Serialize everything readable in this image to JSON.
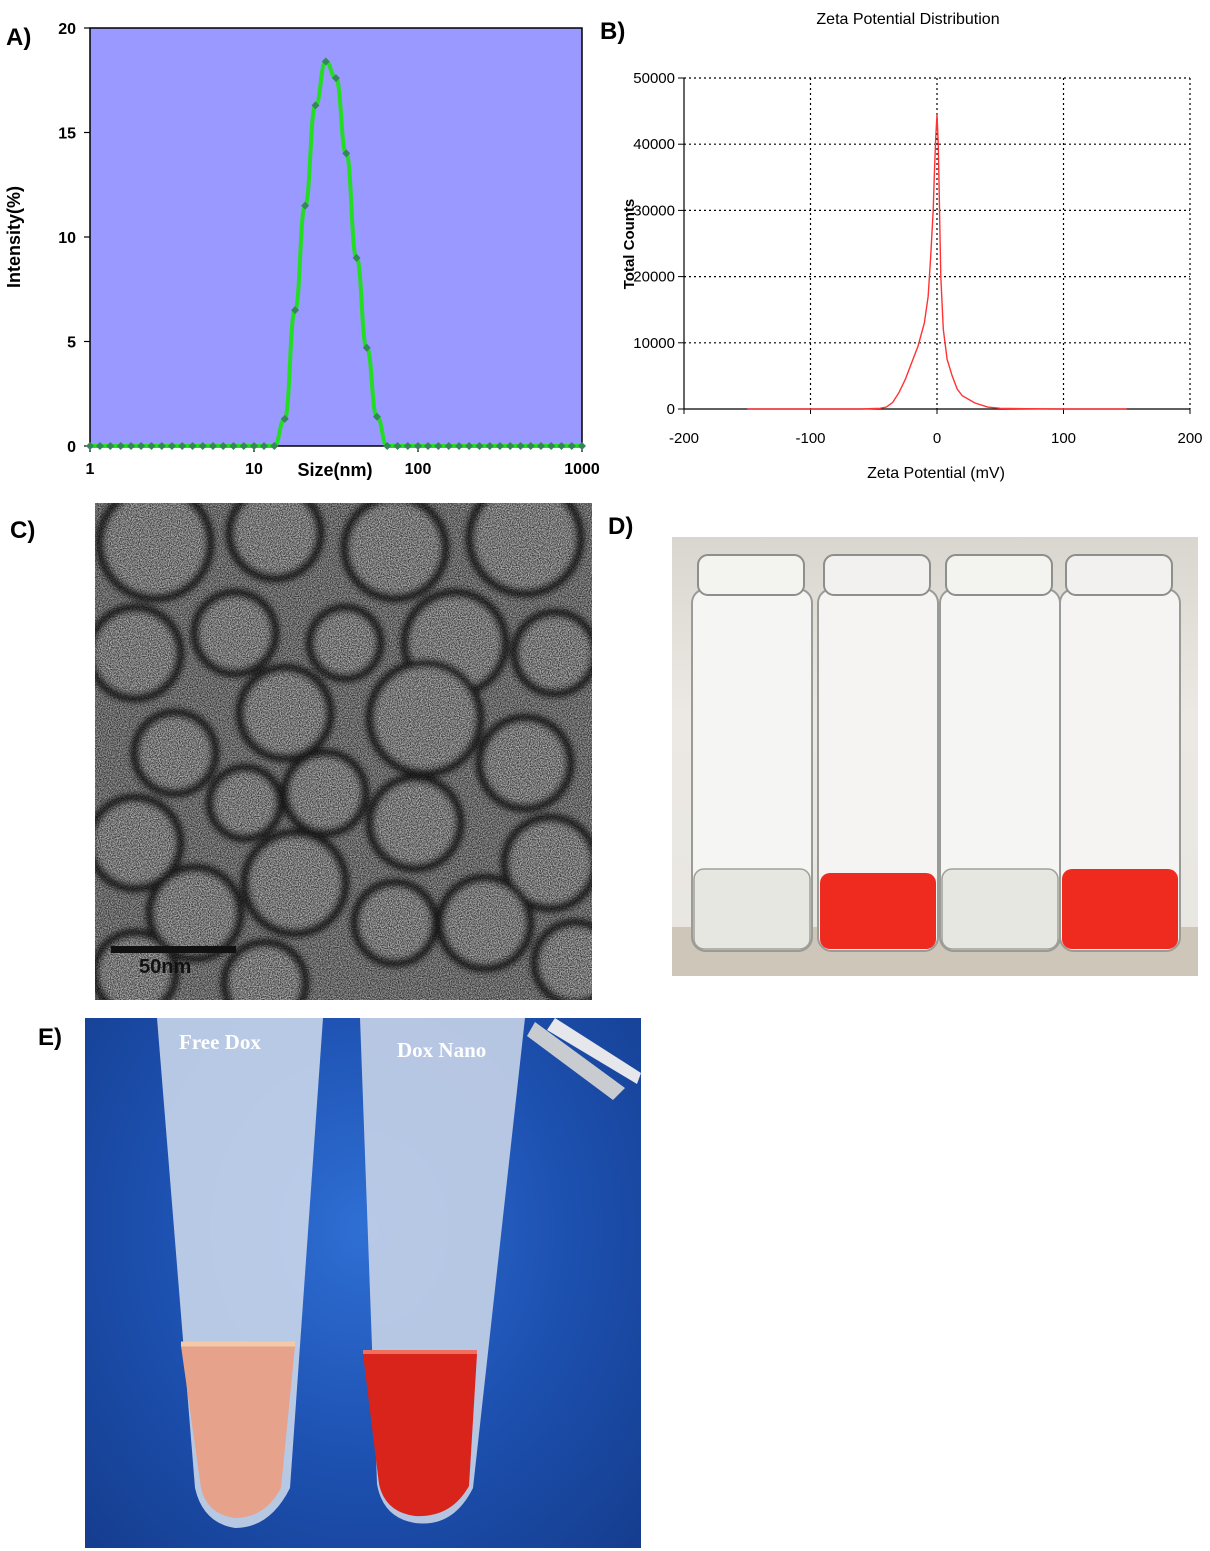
{
  "panels": {
    "a": "A)",
    "b": "B)",
    "c": "C)",
    "d": "D)",
    "e": "E)"
  },
  "chart_data": [
    {
      "type": "line",
      "panel": "A",
      "title": "",
      "xlabel": "Size(nm)",
      "ylabel": "Intensity(%)",
      "xscale": "log",
      "xlim": [
        1,
        1000
      ],
      "ylim": [
        0,
        20
      ],
      "xticks": [
        "1",
        "10",
        "100",
        "1000"
      ],
      "yticks": [
        "0",
        "5",
        "10",
        "15",
        "20"
      ],
      "background_color": "#9999ff",
      "line_color": "#22dd22",
      "marker_color": "#338855",
      "series": [
        {
          "x": [
            1,
            1.15,
            1.33,
            1.54,
            1.78,
            2.05,
            2.37,
            2.74,
            3.16,
            3.65,
            4.22,
            4.87,
            5.62,
            6.49,
            7.5,
            8.66,
            10,
            11.5,
            13.3,
            15.4,
            17.8,
            20.5,
            23.7,
            27.4,
            31.6,
            36.5,
            42.2,
            48.7,
            56.2,
            64.9,
            75,
            86.6,
            100,
            115,
            133,
            154,
            178,
            205,
            237,
            274,
            316,
            365,
            422,
            487,
            562,
            649,
            750,
            866,
            1000
          ],
          "values": [
            0,
            0,
            0,
            0,
            0,
            0,
            0,
            0,
            0,
            0,
            0,
            0,
            0,
            0,
            0,
            0,
            0,
            0,
            0,
            1.3,
            6.5,
            11.5,
            16.3,
            18.4,
            17.6,
            14.0,
            9.0,
            4.7,
            1.4,
            0,
            0,
            0,
            0,
            0,
            0,
            0,
            0,
            0,
            0,
            0,
            0,
            0,
            0,
            0,
            0,
            0,
            0,
            0,
            0
          ]
        }
      ]
    },
    {
      "type": "line",
      "panel": "B",
      "title": "Zeta Potential Distribution",
      "xlabel": "Zeta Potential (mV)",
      "ylabel": "Total Counts",
      "xlim": [
        -200,
        200
      ],
      "ylim": [
        0,
        50000
      ],
      "xticks": [
        "-200",
        "-100",
        "0",
        "100",
        "200"
      ],
      "yticks": [
        "0",
        "10000",
        "20000",
        "30000",
        "40000",
        "50000"
      ],
      "grid": true,
      "line_color": "#ff3333",
      "series": [
        {
          "x": [
            -150,
            -60,
            -45,
            -40,
            -35,
            -30,
            -25,
            -20,
            -15,
            -10,
            -7,
            -5,
            -3,
            -2,
            -1,
            0,
            1,
            2,
            3,
            5,
            8,
            12,
            16,
            20,
            30,
            40,
            50,
            70,
            100,
            150
          ],
          "values": [
            0,
            0,
            100,
            300,
            1000,
            2500,
            4500,
            7000,
            9500,
            13000,
            17000,
            23000,
            30000,
            36000,
            41000,
            44500,
            40000,
            30000,
            20000,
            12000,
            7500,
            5000,
            3000,
            2000,
            900,
            300,
            100,
            50,
            0,
            0
          ]
        }
      ]
    }
  ],
  "photos": {
    "c": {
      "scale_label": "50nm"
    },
    "e": {
      "left_label": "Free Dox",
      "right_label": "Dox Nano"
    }
  }
}
